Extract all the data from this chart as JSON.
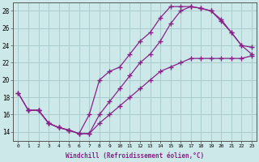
{
  "xlabel": "Windchill (Refroidissement éolien,°C)",
  "background_color": "#cce8e8",
  "line_color": "#882288",
  "grid_color": "#aacccc",
  "xlim": [
    -0.5,
    23.5
  ],
  "ylim": [
    13.0,
    29.0
  ],
  "xticks": [
    0,
    1,
    2,
    3,
    4,
    5,
    6,
    7,
    8,
    9,
    10,
    11,
    12,
    13,
    14,
    15,
    16,
    17,
    18,
    19,
    20,
    21,
    22,
    23
  ],
  "yticks": [
    14,
    16,
    18,
    20,
    22,
    24,
    26,
    28
  ],
  "line1_x": [
    0,
    1,
    2,
    3,
    4,
    5,
    6,
    7,
    8,
    9,
    10,
    11,
    12,
    13,
    14,
    15,
    16,
    17,
    18,
    19,
    20,
    21,
    22,
    23
  ],
  "line1_y": [
    18.5,
    16.5,
    16.5,
    15.0,
    14.5,
    14.2,
    13.8,
    16.0,
    20.0,
    21.0,
    21.5,
    23.0,
    24.5,
    25.5,
    27.2,
    28.5,
    28.5,
    28.5,
    28.3,
    28.0,
    27.0,
    25.5,
    24.0,
    23.8
  ],
  "line2_x": [
    1,
    2,
    3,
    4,
    5,
    6,
    7,
    8,
    9,
    10,
    11,
    12,
    13,
    14,
    15,
    16,
    17,
    18,
    19,
    20,
    21,
    22,
    23
  ],
  "line2_y": [
    16.5,
    16.5,
    15.0,
    14.5,
    14.2,
    13.8,
    13.8,
    16.0,
    17.5,
    19.0,
    20.5,
    22.0,
    23.0,
    24.5,
    26.5,
    28.0,
    28.5,
    28.3,
    28.0,
    26.8,
    25.5,
    24.0,
    23.0
  ],
  "line3_x": [
    0,
    1,
    2,
    3,
    4,
    5,
    6,
    7,
    8,
    9,
    10,
    11,
    12,
    13,
    14,
    15,
    16,
    17,
    18,
    19,
    20,
    21,
    22,
    23
  ],
  "line3_y": [
    18.5,
    16.5,
    16.5,
    15.0,
    14.5,
    14.2,
    13.8,
    13.8,
    15.0,
    16.0,
    17.0,
    18.0,
    19.0,
    20.0,
    21.0,
    21.5,
    22.0,
    22.5,
    22.5,
    22.5,
    22.5,
    22.5,
    22.5,
    22.8
  ]
}
